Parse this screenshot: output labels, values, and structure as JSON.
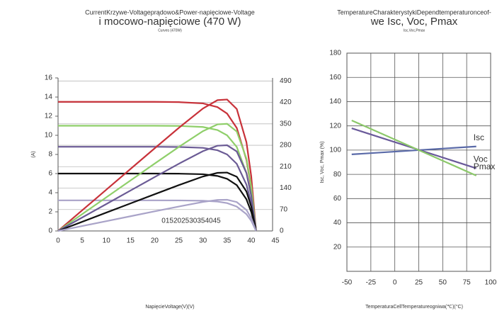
{
  "chart_data": [
    {
      "type": "line",
      "title": "CurrentKrzywe-Voltageprądowo&Power-napięciowe-Voltage",
      "subtitle": "i mocowo-napięciowe (470 W)",
      "subtitle2": "Curves (470W)",
      "x_label": "NapięcieVoltage(V)(V)",
      "y_label": "(A)",
      "annotation": "015202530354045",
      "x": [
        0,
        5,
        10,
        15,
        20,
        25,
        30,
        33,
        35,
        37,
        39,
        40,
        41
      ],
      "xlim": [
        0,
        45
      ],
      "xticks": [
        0,
        5,
        10,
        15,
        20,
        25,
        30,
        35,
        40,
        45
      ],
      "ylim": [
        0,
        16
      ],
      "yticks": [
        0,
        2,
        4,
        6,
        8,
        10,
        12,
        14,
        16
      ],
      "y2lim": [
        0,
        500
      ],
      "y2ticks": [
        0,
        70,
        140,
        210,
        280,
        350,
        420,
        490
      ],
      "grid": true,
      "series": [
        {
          "color": "#c8323a",
          "values": [
            13.5,
            13.5,
            13.5,
            13.5,
            13.5,
            13.47,
            13.34,
            12.95,
            12.27,
            10.77,
            7.44,
            4.46,
            0
          ]
        },
        {
          "color": "#8fcf6a",
          "values": [
            11,
            11,
            11,
            11,
            11,
            10.98,
            10.87,
            10.55,
            10,
            8.78,
            6.06,
            3.63,
            0
          ]
        },
        {
          "color": "#6b5b95",
          "values": [
            8.8,
            8.8,
            8.8,
            8.8,
            8.8,
            8.78,
            8.69,
            8.44,
            8,
            7.02,
            4.85,
            2.9,
            0
          ]
        },
        {
          "color": "#111111",
          "values": [
            6,
            6,
            6,
            6,
            6,
            5.99,
            5.93,
            5.75,
            5.45,
            4.79,
            3.31,
            1.98,
            0
          ]
        },
        {
          "color": "#a9a3c8",
          "values": [
            3.2,
            3.2,
            3.2,
            3.2,
            3.2,
            3.19,
            3.16,
            3.07,
            2.91,
            2.55,
            1.76,
            1.06,
            0
          ]
        },
        {
          "color": "#c8323a",
          "axis": "y2",
          "values": [
            0,
            67.5,
            135,
            202.5,
            270,
            336.8,
            400.2,
            427.4,
            429.5,
            398.5,
            290.2,
            178.4,
            0
          ]
        },
        {
          "color": "#8fcf6a",
          "axis": "y2",
          "values": [
            0,
            55,
            110,
            165,
            220,
            274.5,
            326.1,
            348.2,
            350,
            324.9,
            236.3,
            145.2,
            0
          ]
        },
        {
          "color": "#6b5b95",
          "axis": "y2",
          "values": [
            0,
            44,
            88,
            132,
            176,
            219.5,
            260.7,
            278.5,
            280,
            259.7,
            189.2,
            116,
            0
          ]
        },
        {
          "color": "#111111",
          "axis": "y2",
          "values": [
            0,
            30,
            60,
            90,
            120,
            149.8,
            177.9,
            189.8,
            190.8,
            177.2,
            129.1,
            79.2,
            0
          ]
        },
        {
          "color": "#a9a3c8",
          "axis": "y2",
          "values": [
            0,
            16,
            32,
            48,
            64,
            79.8,
            94.8,
            101.3,
            101.9,
            94.4,
            68.6,
            42.4,
            0
          ]
        }
      ]
    },
    {
      "type": "line",
      "title": "TemperatureCharakterystykiDependtemperaturonceof-",
      "subtitle": "we Isc, Voc, Pmax",
      "subtitle2": "Isc,Voc,Pmax",
      "x_label": "TemperaturaCellTemperatureogniwa(℃)(°C)",
      "y_label": "Isc, Voc, Pmax (%)",
      "x": [
        -45,
        85
      ],
      "xlim": [
        -50,
        100
      ],
      "xticks": [
        -50,
        -25,
        0,
        25,
        50,
        75,
        100
      ],
      "ylim": [
        0,
        180
      ],
      "yticks": [
        20,
        40,
        60,
        80,
        100,
        120,
        140,
        160,
        180
      ],
      "grid": true,
      "series": [
        {
          "name": "Isc",
          "color": "#5a6aa8",
          "values": [
            96.5,
            103
          ]
        },
        {
          "name": "Voc",
          "color": "#6a5a9a",
          "values": [
            118,
            85
          ]
        },
        {
          "name": "Pmax",
          "color": "#8cc86a",
          "values": [
            124.5,
            79
          ]
        }
      ]
    }
  ]
}
